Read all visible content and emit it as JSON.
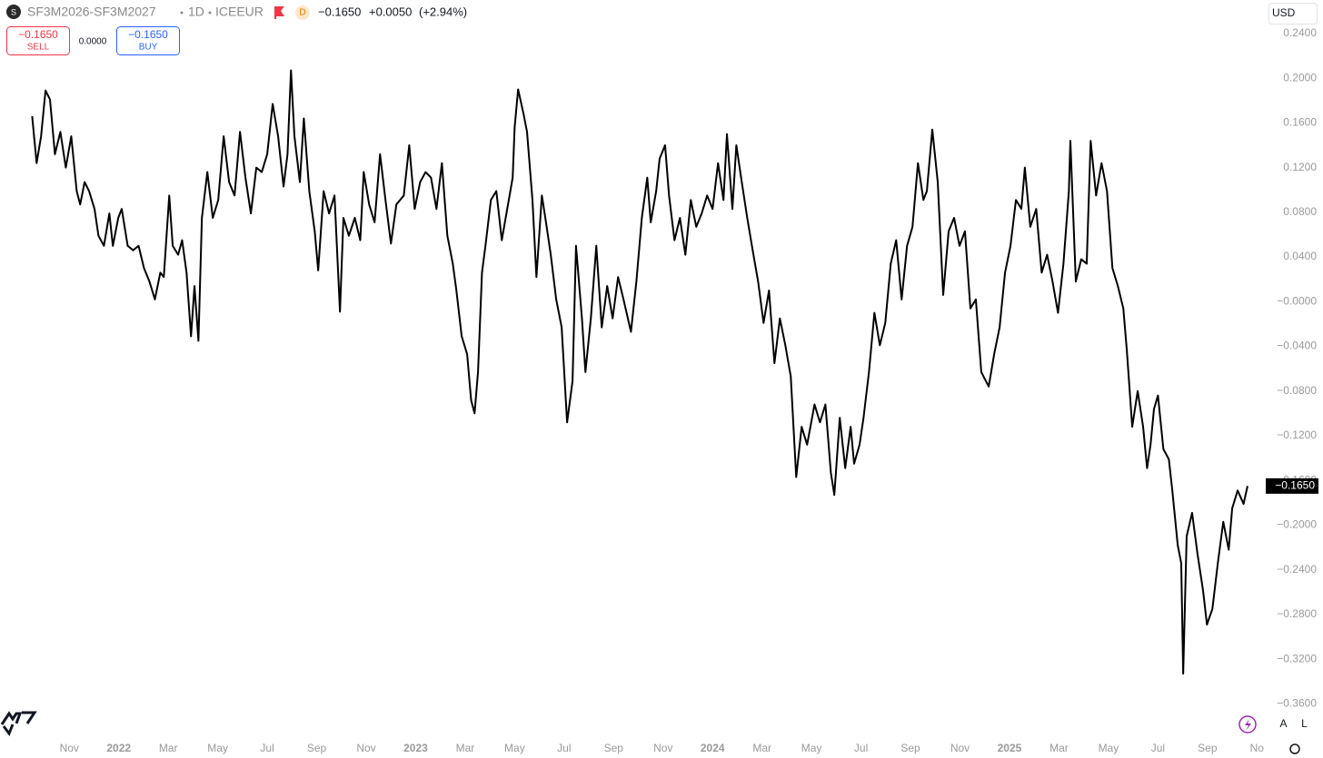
{
  "header": {
    "symbol": "SF3M2026-SF3M2027",
    "interval": "1D",
    "exchange": "ICEEUR",
    "badge": "D",
    "last": "−0.1650",
    "change": "+0.0050",
    "change_pct": "(+2.94%)",
    "currency": "USD"
  },
  "trade": {
    "sell_price": "−0.1650",
    "sell": "SELL",
    "spread": "0.0000",
    "buy_price": "−0.1650",
    "buy": "BUY"
  },
  "controls": {
    "auto": "A",
    "log": "L"
  },
  "chart_data": {
    "type": "line",
    "color": "#000000",
    "grid": false,
    "xlim": [
      -1.4,
      24.16
    ],
    "ylim": [
      -0.38,
      0.27
    ],
    "xticks": [
      {
        "value": 0,
        "label": "Nov"
      },
      {
        "value": 1,
        "label": "2022"
      },
      {
        "value": 2,
        "label": "Mar"
      },
      {
        "value": 3,
        "label": "May"
      },
      {
        "value": 4,
        "label": "Jul"
      },
      {
        "value": 5,
        "label": "Sep"
      },
      {
        "value": 6,
        "label": "Nov"
      },
      {
        "value": 7,
        "label": "2023"
      },
      {
        "value": 8,
        "label": "Mar"
      },
      {
        "value": 9,
        "label": "May"
      },
      {
        "value": 10,
        "label": "Jul"
      },
      {
        "value": 11,
        "label": "Sep"
      },
      {
        "value": 12,
        "label": "Nov"
      },
      {
        "value": 13,
        "label": "2024"
      },
      {
        "value": 14,
        "label": "Mar"
      },
      {
        "value": 15,
        "label": "May"
      },
      {
        "value": 16,
        "label": "Jul"
      },
      {
        "value": 17,
        "label": "Sep"
      },
      {
        "value": 18,
        "label": "Nov"
      },
      {
        "value": 19,
        "label": "2025"
      },
      {
        "value": 20,
        "label": "Mar"
      },
      {
        "value": 21,
        "label": "May"
      },
      {
        "value": 22,
        "label": "Jul"
      },
      {
        "value": 23,
        "label": "Sep"
      },
      {
        "value": 24,
        "label": "No"
      }
    ],
    "yticks": [
      {
        "value": 0.24,
        "label": "0.2400"
      },
      {
        "value": 0.2,
        "label": "0.2000"
      },
      {
        "value": 0.16,
        "label": "0.1600"
      },
      {
        "value": 0.12,
        "label": "0.1200"
      },
      {
        "value": 0.08,
        "label": "0.0800"
      },
      {
        "value": 0.04,
        "label": "0.0400"
      },
      {
        "value": 0,
        "label": "−0.0000"
      },
      {
        "value": -0.04,
        "label": "−0.0400"
      },
      {
        "value": -0.08,
        "label": "−0.0800"
      },
      {
        "value": -0.12,
        "label": "−0.1200"
      },
      {
        "value": -0.16,
        "label": "−0.1600"
      },
      {
        "value": -0.2,
        "label": "−0.2000"
      },
      {
        "value": -0.24,
        "label": "−0.2400"
      },
      {
        "value": -0.28,
        "label": "−0.2800"
      },
      {
        "value": -0.32,
        "label": "−0.3200"
      },
      {
        "value": -0.36,
        "label": "−0.3600"
      }
    ],
    "price_label": {
      "value": -0.165,
      "label": "−0.1650"
    },
    "x": [
      -0.75,
      -0.66,
      -0.57,
      -0.48,
      -0.39,
      -0.29,
      -0.18,
      -0.07,
      0.04,
      0.15,
      0.22,
      0.31,
      0.4,
      0.51,
      0.59,
      0.7,
      0.81,
      0.88,
      0.99,
      1.06,
      1.18,
      1.29,
      1.4,
      1.51,
      1.62,
      1.73,
      1.84,
      1.91,
      2.02,
      2.09,
      2.2,
      2.28,
      2.37,
      2.46,
      2.53,
      2.61,
      2.68,
      2.79,
      2.9,
      3.01,
      3.12,
      3.23,
      3.34,
      3.45,
      3.56,
      3.67,
      3.78,
      3.89,
      4.0,
      4.11,
      4.22,
      4.33,
      4.41,
      4.48,
      4.55,
      4.66,
      4.74,
      4.85,
      4.96,
      5.03,
      5.14,
      5.25,
      5.36,
      5.47,
      5.54,
      5.65,
      5.77,
      5.88,
      5.95,
      6.06,
      6.17,
      6.28,
      6.39,
      6.5,
      6.61,
      6.76,
      6.87,
      6.98,
      7.09,
      7.2,
      7.31,
      7.42,
      7.53,
      7.64,
      7.75,
      7.82,
      7.93,
      8.04,
      8.12,
      8.19,
      8.26,
      8.34,
      8.41,
      8.52,
      8.63,
      8.74,
      8.85,
      8.96,
      9.0,
      9.07,
      9.18,
      9.25,
      9.36,
      9.44,
      9.55,
      9.62,
      9.73,
      9.84,
      9.95,
      10.06,
      10.17,
      10.24,
      10.36,
      10.43,
      10.54,
      10.65,
      10.76,
      10.87,
      10.98,
      11.09,
      11.2,
      11.35,
      11.46,
      11.57,
      11.68,
      11.75,
      11.86,
      11.93,
      12.04,
      12.12,
      12.23,
      12.34,
      12.45,
      12.56,
      12.67,
      12.78,
      12.89,
      13.0,
      13.11,
      13.22,
      13.29,
      13.4,
      13.48,
      13.59,
      13.7,
      13.81,
      13.92,
      14.03,
      14.14,
      14.25,
      14.36,
      14.47,
      14.58,
      14.69,
      14.8,
      14.91,
      15.06,
      15.17,
      15.28,
      15.39,
      15.46,
      15.57,
      15.68,
      15.79,
      15.86,
      15.97,
      16.05,
      16.16,
      16.27,
      16.38,
      16.49,
      16.6,
      16.71,
      16.82,
      16.93,
      17.04,
      17.15,
      17.26,
      17.33,
      17.44,
      17.55,
      17.66,
      17.77,
      17.88,
      17.99,
      18.1,
      18.21,
      18.32,
      18.43,
      18.58,
      18.69,
      18.8,
      18.91,
      19.02,
      19.13,
      19.24,
      19.31,
      19.42,
      19.54,
      19.65,
      19.76,
      19.87,
      19.98,
      20.09,
      20.2,
      20.23,
      20.34,
      20.45,
      20.56,
      20.64,
      20.75,
      20.86,
      20.97,
      21.08,
      21.19,
      21.3,
      21.37,
      21.48,
      21.59,
      21.7,
      21.78,
      21.85,
      21.92,
      22.0,
      22.11,
      22.22,
      22.29,
      22.4,
      22.47,
      22.51,
      22.58,
      22.69,
      22.8,
      22.91,
      22.99,
      23.1,
      23.21,
      23.32,
      23.43,
      23.5,
      23.61,
      23.73,
      23.81
    ],
    "values": [
      0.166,
      0.124,
      0.148,
      0.189,
      0.181,
      0.132,
      0.152,
      0.12,
      0.148,
      0.099,
      0.087,
      0.107,
      0.099,
      0.083,
      0.059,
      0.05,
      0.079,
      0.05,
      0.075,
      0.083,
      0.05,
      0.046,
      0.05,
      0.03,
      0.018,
      0.002,
      0.026,
      0.022,
      0.095,
      0.05,
      0.042,
      0.055,
      0.026,
      -0.031,
      0.014,
      -0.035,
      0.075,
      0.116,
      0.075,
      0.091,
      0.148,
      0.107,
      0.095,
      0.152,
      0.111,
      0.079,
      0.12,
      0.116,
      0.132,
      0.177,
      0.148,
      0.103,
      0.132,
      0.207,
      0.148,
      0.107,
      0.164,
      0.099,
      0.063,
      0.028,
      0.099,
      0.079,
      0.095,
      -0.009,
      0.075,
      0.059,
      0.075,
      0.055,
      0.116,
      0.087,
      0.071,
      0.132,
      0.091,
      0.052,
      0.087,
      0.095,
      0.14,
      0.083,
      0.107,
      0.116,
      0.111,
      0.083,
      0.124,
      0.059,
      0.034,
      0.011,
      -0.031,
      -0.047,
      -0.088,
      -0.1,
      -0.063,
      0.026,
      0.05,
      0.091,
      0.099,
      0.055,
      0.083,
      0.111,
      0.156,
      0.19,
      0.168,
      0.152,
      0.091,
      0.022,
      0.095,
      0.075,
      0.042,
      0.002,
      -0.023,
      -0.108,
      -0.071,
      0.05,
      -0.015,
      -0.063,
      -0.015,
      0.05,
      -0.023,
      0.014,
      -0.015,
      0.022,
      0.002,
      -0.027,
      0.018,
      0.075,
      0.111,
      0.071,
      0.099,
      0.128,
      0.14,
      0.095,
      0.055,
      0.075,
      0.042,
      0.091,
      0.067,
      0.079,
      0.095,
      0.083,
      0.124,
      0.091,
      0.15,
      0.083,
      0.14,
      0.107,
      0.075,
      0.046,
      0.018,
      -0.019,
      0.01,
      -0.055,
      -0.015,
      -0.039,
      -0.067,
      -0.157,
      -0.112,
      -0.128,
      -0.092,
      -0.108,
      -0.092,
      -0.153,
      -0.173,
      -0.104,
      -0.149,
      -0.112,
      -0.145,
      -0.128,
      -0.104,
      -0.063,
      -0.01,
      -0.039,
      -0.019,
      0.034,
      0.055,
      0.002,
      0.05,
      0.067,
      0.124,
      0.091,
      0.099,
      0.154,
      0.107,
      0.006,
      0.063,
      0.075,
      0.05,
      0.063,
      -0.006,
      0.002,
      -0.063,
      -0.076,
      -0.047,
      -0.023,
      0.026,
      0.05,
      0.091,
      0.083,
      0.12,
      0.067,
      0.083,
      0.026,
      0.042,
      0.018,
      -0.01,
      0.034,
      0.099,
      0.144,
      0.018,
      0.038,
      0.034,
      0.144,
      0.095,
      0.124,
      0.099,
      0.03,
      0.014,
      -0.006,
      -0.043,
      -0.112,
      -0.08,
      -0.112,
      -0.149,
      -0.128,
      -0.096,
      -0.084,
      -0.132,
      -0.141,
      -0.169,
      -0.218,
      -0.234,
      -0.333,
      -0.21,
      -0.189,
      -0.226,
      -0.258,
      -0.289,
      -0.275,
      -0.234,
      -0.197,
      -0.222,
      -0.185,
      -0.169,
      -0.181,
      -0.165
    ]
  }
}
